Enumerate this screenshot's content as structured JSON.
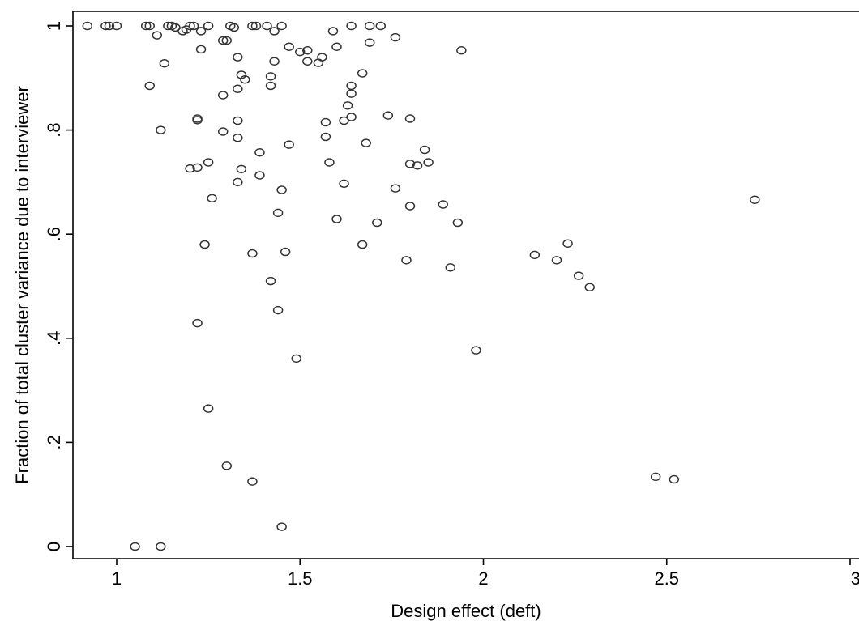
{
  "chart_data": {
    "type": "scatter",
    "title": "",
    "xlabel": "Design effect (deft)",
    "ylabel": "Fraction of total cluster variance due to interviewer",
    "xlim": [
      0.9,
      3.0
    ],
    "ylim": [
      0,
      1.0
    ],
    "xticks": [
      1,
      1.5,
      2,
      2.5,
      3
    ],
    "xtick_labels": [
      "1",
      "1.5",
      "2",
      "2.5",
      "3"
    ],
    "yticks": [
      0,
      0.2,
      0.4,
      0.6,
      0.8,
      1
    ],
    "ytick_labels": [
      "0",
      ".2",
      ".4",
      ".6",
      ".8",
      "1"
    ],
    "grid": false,
    "marker_color": "#333333",
    "series": [
      {
        "points": [
          [
            0.92,
            1.0
          ],
          [
            0.97,
            1.0
          ],
          [
            0.98,
            1.0
          ],
          [
            1.0,
            1.0
          ],
          [
            1.08,
            1.0
          ],
          [
            1.09,
            1.0
          ],
          [
            1.14,
            1.0
          ],
          [
            1.15,
            1.0
          ],
          [
            1.2,
            1.0
          ],
          [
            1.21,
            1.0
          ],
          [
            1.25,
            1.0
          ],
          [
            1.31,
            1.0
          ],
          [
            1.37,
            1.0
          ],
          [
            1.38,
            1.0
          ],
          [
            1.41,
            1.0
          ],
          [
            1.45,
            1.0
          ],
          [
            1.64,
            1.0
          ],
          [
            1.69,
            1.0
          ],
          [
            1.72,
            1.0
          ],
          [
            1.16,
            0.997
          ],
          [
            1.19,
            0.993
          ],
          [
            1.32,
            0.997
          ],
          [
            1.18,
            0.99
          ],
          [
            1.23,
            0.99
          ],
          [
            1.43,
            0.99
          ],
          [
            1.59,
            0.99
          ],
          [
            1.11,
            0.982
          ],
          [
            1.76,
            0.978
          ],
          [
            1.29,
            0.972
          ],
          [
            1.3,
            0.972
          ],
          [
            1.69,
            0.968
          ],
          [
            1.47,
            0.96
          ],
          [
            1.6,
            0.96
          ],
          [
            1.23,
            0.955
          ],
          [
            1.5,
            0.95
          ],
          [
            1.52,
            0.953
          ],
          [
            1.94,
            0.953
          ],
          [
            1.33,
            0.94
          ],
          [
            1.56,
            0.94
          ],
          [
            1.43,
            0.932
          ],
          [
            1.52,
            0.932
          ],
          [
            1.55,
            0.929
          ],
          [
            1.13,
            0.928
          ],
          [
            1.67,
            0.909
          ],
          [
            1.34,
            0.906
          ],
          [
            1.42,
            0.903
          ],
          [
            1.35,
            0.897
          ],
          [
            1.09,
            0.885
          ],
          [
            1.42,
            0.885
          ],
          [
            1.64,
            0.885
          ],
          [
            1.33,
            0.879
          ],
          [
            1.64,
            0.87
          ],
          [
            1.29,
            0.867
          ],
          [
            1.63,
            0.847
          ],
          [
            1.74,
            0.828
          ],
          [
            1.22,
            0.822
          ],
          [
            1.22,
            0.819
          ],
          [
            1.64,
            0.825
          ],
          [
            1.8,
            0.822
          ],
          [
            1.33,
            0.818
          ],
          [
            1.57,
            0.815
          ],
          [
            1.62,
            0.818
          ],
          [
            1.12,
            0.8
          ],
          [
            1.29,
            0.797
          ],
          [
            1.33,
            0.785
          ],
          [
            1.57,
            0.787
          ],
          [
            1.68,
            0.775
          ],
          [
            1.47,
            0.772
          ],
          [
            1.84,
            0.762
          ],
          [
            1.39,
            0.757
          ],
          [
            1.25,
            0.738
          ],
          [
            1.58,
            0.738
          ],
          [
            1.8,
            0.735
          ],
          [
            1.85,
            0.738
          ],
          [
            1.82,
            0.732
          ],
          [
            1.2,
            0.726
          ],
          [
            1.22,
            0.728
          ],
          [
            1.34,
            0.725
          ],
          [
            1.39,
            0.713
          ],
          [
            1.33,
            0.7
          ],
          [
            1.62,
            0.697
          ],
          [
            1.76,
            0.688
          ],
          [
            1.45,
            0.685
          ],
          [
            1.26,
            0.669
          ],
          [
            1.89,
            0.657
          ],
          [
            1.8,
            0.654
          ],
          [
            1.44,
            0.641
          ],
          [
            1.6,
            0.629
          ],
          [
            1.71,
            0.622
          ],
          [
            1.93,
            0.622
          ],
          [
            2.74,
            0.666
          ],
          [
            1.24,
            0.58
          ],
          [
            1.67,
            0.58
          ],
          [
            2.23,
            0.582
          ],
          [
            1.46,
            0.566
          ],
          [
            1.37,
            0.563
          ],
          [
            2.14,
            0.56
          ],
          [
            1.79,
            0.55
          ],
          [
            2.2,
            0.55
          ],
          [
            1.91,
            0.536
          ],
          [
            2.26,
            0.52
          ],
          [
            1.42,
            0.51
          ],
          [
            2.29,
            0.498
          ],
          [
            1.44,
            0.454
          ],
          [
            1.22,
            0.429
          ],
          [
            1.98,
            0.377
          ],
          [
            1.49,
            0.361
          ],
          [
            1.25,
            0.265
          ],
          [
            1.3,
            0.155
          ],
          [
            2.47,
            0.134
          ],
          [
            2.52,
            0.129
          ],
          [
            1.37,
            0.125
          ],
          [
            1.45,
            0.038
          ],
          [
            1.05,
            0.0
          ],
          [
            1.12,
            0.0
          ]
        ]
      }
    ]
  }
}
